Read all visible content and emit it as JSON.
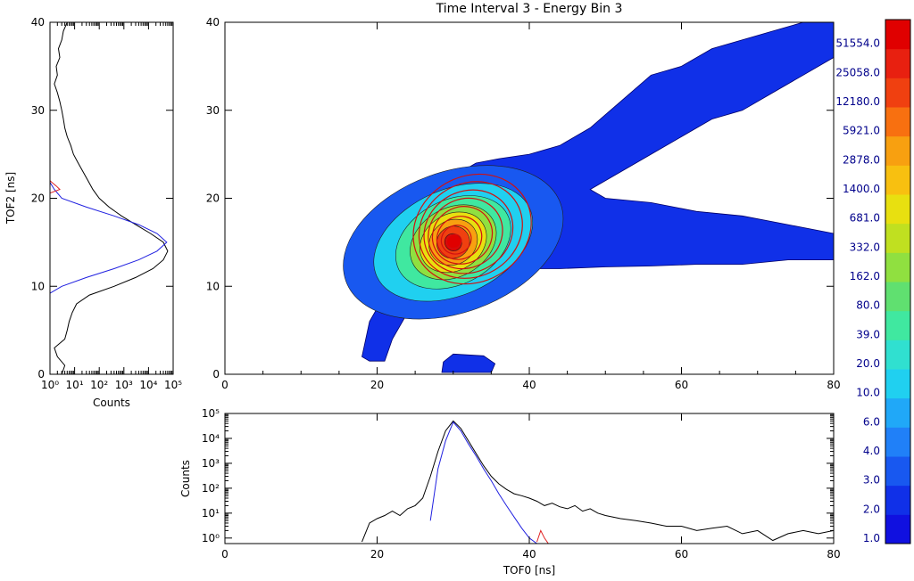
{
  "chart_data": [
    {
      "type": "heatmap",
      "title": "Time Interval 3 -  Energy Bin 3",
      "xlabel": "",
      "ylabel": "",
      "xlim": [
        0,
        80
      ],
      "ylim": [
        0,
        40
      ],
      "x_ticks": [
        "0",
        "20",
        "40",
        "60",
        "80"
      ],
      "y_ticks": [
        "0",
        "10",
        "20",
        "30",
        "40"
      ],
      "colorbar_levels": [
        "1.0",
        "2.0",
        "3.0",
        "4.0",
        "6.0",
        "10.0",
        "20.0",
        "39.0",
        "80.0",
        "162.0",
        "332.0",
        "681.0",
        "1400.0",
        "2878.0",
        "5921.0",
        "12180.0",
        "25058.0",
        "51554.0"
      ],
      "colors": [
        "#1010e0",
        "#1030e8",
        "#1858f0",
        "#2080f8",
        "#20a8f8",
        "#20d0f0",
        "#30e0d0",
        "#40e8a0",
        "#60e070",
        "#90e040",
        "#c0e020",
        "#e8e010",
        "#f8c010",
        "#f8a010",
        "#f87010",
        "#f04010",
        "#e82010",
        "#e00000"
      ],
      "peak": {
        "x": 30,
        "y": 15
      },
      "regions": [
        {
          "name": "main",
          "points": [
            [
              18,
              2
            ],
            [
              19,
              6
            ],
            [
              21,
              9
            ],
            [
              23,
              13
            ],
            [
              25,
              18
            ],
            [
              27,
              21
            ],
            [
              30,
              22.5
            ],
            [
              33,
              24
            ],
            [
              36,
              24.5
            ],
            [
              40,
              25
            ],
            [
              44,
              26
            ],
            [
              48,
              28
            ],
            [
              52,
              31
            ],
            [
              56,
              34
            ],
            [
              60,
              35
            ],
            [
              64,
              37
            ],
            [
              68,
              38
            ],
            [
              72,
              39
            ],
            [
              76,
              40
            ],
            [
              80,
              40
            ],
            [
              80,
              36
            ],
            [
              76,
              34
            ],
            [
              72,
              32
            ],
            [
              68,
              30
            ],
            [
              64,
              29
            ],
            [
              60,
              27
            ],
            [
              56,
              25
            ],
            [
              52,
              23
            ],
            [
              48,
              21
            ],
            [
              50,
              20
            ],
            [
              56,
              19.5
            ],
            [
              62,
              18.5
            ],
            [
              68,
              18
            ],
            [
              74,
              17
            ],
            [
              80,
              16
            ],
            [
              80,
              13
            ],
            [
              74,
              13
            ],
            [
              68,
              12.5
            ],
            [
              62,
              12.5
            ],
            [
              56,
              12.3
            ],
            [
              50,
              12.2
            ],
            [
              44,
              12
            ],
            [
              40,
              12
            ],
            [
              36,
              11.3
            ],
            [
              33,
              10.5
            ],
            [
              30,
              9.5
            ],
            [
              28,
              9
            ],
            [
              26,
              8.5
            ],
            [
              24,
              7
            ],
            [
              22,
              4
            ],
            [
              21,
              1.5
            ],
            [
              19,
              1.5
            ]
          ]
        },
        {
          "name": "blob",
          "points": [
            [
              28.5,
              0.2
            ],
            [
              35,
              0.2
            ],
            [
              35.5,
              1.2
            ],
            [
              34,
              2.1
            ],
            [
              30,
              2.3
            ],
            [
              28.7,
              1.4
            ]
          ]
        }
      ],
      "levels": [
        {
          "value": 1.0,
          "color_index": 2,
          "rx": 15,
          "ry": 8,
          "rot": 20
        },
        {
          "value": 10.0,
          "color_index": 5,
          "rx": 11,
          "ry": 6,
          "rot": 24
        },
        {
          "value": 39.0,
          "color_index": 7,
          "rx": 8,
          "ry": 4.8,
          "rot": 27
        },
        {
          "value": 162.0,
          "color_index": 9,
          "rx": 6,
          "ry": 3.9,
          "rot": 30
        },
        {
          "value": 681.0,
          "color_index": 11,
          "rx": 4.6,
          "ry": 3.2,
          "rot": 32
        },
        {
          "value": 2878.0,
          "color_index": 13,
          "rx": 3.3,
          "ry": 2.5,
          "rot": 34
        },
        {
          "value": 12180.0,
          "color_index": 15,
          "rx": 2.2,
          "ry": 1.8,
          "rot": 36
        },
        {
          "value": 51554.0,
          "color_index": 17,
          "rx": 1.1,
          "ry": 1.0,
          "rot": 36
        }
      ],
      "fit_contours": [
        {
          "cx": 32.5,
          "cy": 16.5,
          "rx": 8,
          "ry": 6,
          "rot": 30
        },
        {
          "cx": 32.3,
          "cy": 16.4,
          "rx": 7,
          "ry": 5.3,
          "rot": 30
        },
        {
          "cx": 32.0,
          "cy": 16.2,
          "rx": 6,
          "ry": 4.6,
          "rot": 30
        },
        {
          "cx": 31.6,
          "cy": 16.0,
          "rx": 5,
          "ry": 3.9,
          "rot": 30
        },
        {
          "cx": 31.2,
          "cy": 15.8,
          "rx": 4,
          "ry": 3.2,
          "rot": 30
        },
        {
          "cx": 30.8,
          "cy": 15.5,
          "rx": 3,
          "ry": 2.4,
          "rot": 30
        },
        {
          "cx": 30.4,
          "cy": 15.3,
          "rx": 2,
          "ry": 1.6,
          "rot": 30
        },
        {
          "cx": 30.1,
          "cy": 15.1,
          "rx": 1,
          "ry": 0.8,
          "rot": 30
        }
      ]
    },
    {
      "type": "line",
      "title": "",
      "xlabel": "Counts",
      "ylabel": "TOF2 [ns]",
      "xscale": "log",
      "xlim": [
        1,
        100000
      ],
      "ylim": [
        0,
        40
      ],
      "x_ticks": [
        "10⁰",
        "10¹",
        "10²",
        "10³",
        "10⁴",
        "10⁵"
      ],
      "y_ticks": [
        "0",
        "10",
        "20",
        "30",
        "40"
      ],
      "series": [
        {
          "color": "#000000",
          "y": [
            0,
            1,
            2,
            3,
            4,
            5,
            6,
            7,
            8,
            9,
            10,
            11,
            12,
            13,
            14,
            15,
            16,
            17,
            18,
            19,
            20,
            21,
            22,
            23,
            24,
            25,
            26,
            27,
            28,
            29,
            30,
            31,
            32,
            33,
            34,
            35,
            36,
            37,
            38,
            39,
            40
          ],
          "x": [
            3,
            4,
            2,
            1.5,
            4,
            5,
            6,
            8,
            12,
            40,
            400,
            3000,
            15000,
            40000,
            60000,
            40000,
            12000,
            3000,
            800,
            250,
            100,
            55,
            35,
            22,
            14,
            9,
            7,
            5,
            4,
            3.5,
            3,
            2.5,
            2,
            1.5,
            2,
            1.8,
            2.5,
            2.2,
            3,
            3.5,
            5
          ]
        },
        {
          "color": "#2020e0",
          "y": [
            9.2,
            10,
            11,
            12,
            13,
            14,
            15,
            16,
            17,
            18,
            19,
            20,
            21,
            21.8
          ],
          "x": [
            1,
            3,
            30,
            400,
            4000,
            22000,
            55000,
            22000,
            4000,
            400,
            30,
            3,
            1.5,
            1
          ]
        },
        {
          "color": "#e02020",
          "y": [
            20.6,
            21,
            21.4,
            21.8,
            22
          ],
          "x": [
            1,
            2.5,
            1.8,
            1.2,
            1
          ]
        }
      ]
    },
    {
      "type": "line",
      "title": "",
      "xlabel": "TOF0 [ns]",
      "ylabel": "Counts",
      "yscale": "log",
      "xlim": [
        0,
        80
      ],
      "ylim": [
        0.6,
        100000
      ],
      "x_ticks": [
        "0",
        "20",
        "40",
        "60",
        "80"
      ],
      "y_ticks": [
        "10⁰",
        "10¹",
        "10²",
        "10³",
        "10⁴",
        "10⁵"
      ],
      "series": [
        {
          "color": "#000000",
          "x": [
            18,
            19,
            20,
            21,
            22,
            23,
            24,
            25,
            26,
            27,
            28,
            29,
            30,
            31,
            32,
            33,
            34,
            35,
            36,
            37,
            38,
            39,
            40,
            41,
            42,
            43,
            44,
            45,
            46,
            47,
            48,
            49,
            50,
            52,
            54,
            56,
            58,
            60,
            62,
            64,
            66,
            68,
            70,
            72,
            74,
            76,
            78,
            80
          ],
          "y": [
            0.7,
            4,
            6,
            8,
            12,
            8,
            15,
            20,
            40,
            300,
            3000,
            20000,
            50000,
            25000,
            8000,
            2500,
            800,
            300,
            150,
            90,
            60,
            50,
            40,
            30,
            20,
            25,
            18,
            15,
            20,
            12,
            15,
            10,
            8,
            6,
            5,
            4,
            3,
            3,
            2,
            2.5,
            3,
            1.5,
            2,
            0.8,
            1.5,
            2,
            1.5,
            2
          ]
        },
        {
          "color": "#2020e0",
          "x": [
            27,
            28,
            29,
            30,
            31,
            32,
            33,
            34,
            35,
            36,
            37,
            38,
            39,
            40,
            41
          ],
          "y": [
            5,
            600,
            8000,
            45000,
            20000,
            6000,
            2000,
            600,
            200,
            60,
            20,
            7,
            2.5,
            1,
            0.6
          ]
        },
        {
          "color": "#e02020",
          "x": [
            41,
            41.5,
            42,
            42.5
          ],
          "y": [
            0.7,
            2,
            1,
            0.6
          ]
        }
      ]
    }
  ]
}
